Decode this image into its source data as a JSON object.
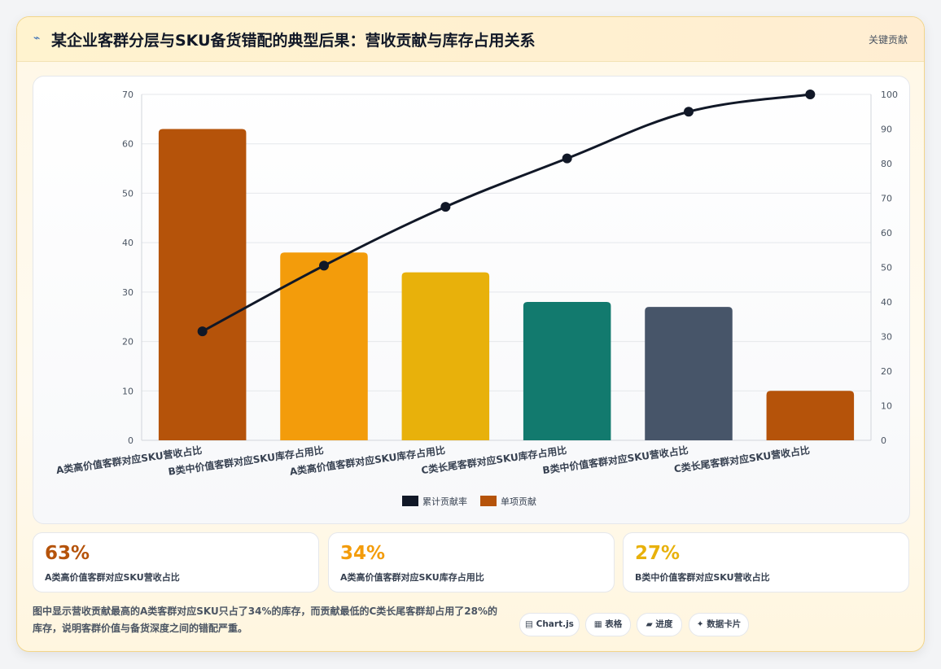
{
  "header": {
    "icon": "lightning-icon",
    "title": "某企业客群分层与SKU备货错配的典型后果：营收贡献与库存占用关系",
    "tag": "关键贡献"
  },
  "chart_data": {
    "type": "bar",
    "categories": [
      "A类高价值客群对应SKU营收占比",
      "B类中价值客群对应SKU库存占用比",
      "A类高价值客群对应SKU库存占用比",
      "C类长尾客群对应SKU库存占用比",
      "B类中价值客群对应SKU营收占比",
      "C类长尾客群对应SKU营收占比"
    ],
    "series": [
      {
        "name": "单项贡献",
        "type": "bar",
        "axis": "left",
        "values": [
          63,
          38,
          34,
          28,
          27,
          10
        ],
        "colors": [
          "#b5530a",
          "#f39c0b",
          "#e8b10b",
          "#127a6e",
          "#475569",
          "#b5530a"
        ]
      },
      {
        "name": "累计贡献率",
        "type": "line",
        "axis": "right",
        "values": [
          31.5,
          50.5,
          67.5,
          81.5,
          95,
          100
        ],
        "color": "#111827"
      }
    ],
    "ylim": [
      0,
      70
    ],
    "yticks": [
      0,
      10,
      20,
      30,
      40,
      50,
      60,
      70
    ],
    "y2lim": [
      0,
      100
    ],
    "y2ticks": [
      0,
      10,
      20,
      30,
      40,
      50,
      60,
      70,
      80,
      90,
      100
    ],
    "legend_position": "bottom-center",
    "grid": true
  },
  "stats": [
    {
      "value": "63%",
      "label": "A类高价值客群对应SKU营收占比",
      "color": "#b5530a"
    },
    {
      "value": "34%",
      "label": "A类高价值客群对应SKU库存占用比",
      "color": "#f39c0b"
    },
    {
      "value": "27%",
      "label": "B类中价值客群对应SKU营收占比",
      "color": "#e8b10b"
    }
  ],
  "note": "图中显示营收贡献最高的A类客群对应SKU只占了34%的库存，而贡献最低的C类长尾客群却占用了28%的库存，说明客群价值与备货深度之间的错配严重。",
  "chips": [
    {
      "label": "▤ Chart.js",
      "icon": "chart-icon"
    },
    {
      "label": "▦ 表格",
      "icon": "table-icon"
    },
    {
      "label": "▰ 进度",
      "icon": "progress-icon"
    },
    {
      "label": "✦ 数据卡片",
      "icon": "sparkle-icon"
    }
  ]
}
